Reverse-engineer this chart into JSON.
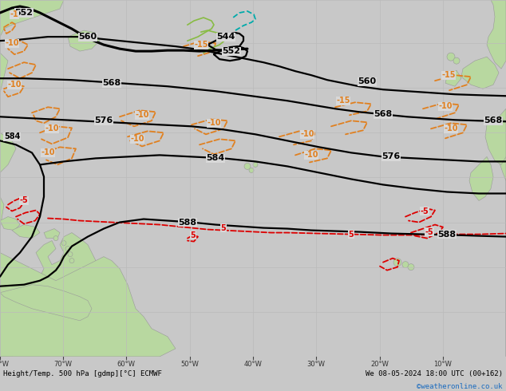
{
  "title_left": "Height/Temp. 500 hPa [gdmp][°C] ECMWF",
  "title_right": "We 08-05-2024 18:00 UTC (00+162)",
  "credit": "©weatheronline.co.uk",
  "fig_width": 6.34,
  "fig_height": 4.9,
  "dpi": 100,
  "map_bg": "#d8d8d8",
  "land_color": "#b8d8a0",
  "land_edge": "#999999",
  "ocean_color": "#d8d8d8",
  "bottom_bar_color": "#c8c8c8",
  "bottom_text_color": "#000000",
  "credit_color": "#1a6bbf",
  "contour_black": "#000000",
  "contour_orange": "#e08020",
  "contour_red": "#dd0000",
  "contour_cyan": "#00aaaa",
  "contour_green": "#88bb44",
  "label_fontsize": 8,
  "black_lw": 1.6,
  "orange_lw": 1.3,
  "red_lw": 1.3,
  "cyan_lw": 1.4
}
